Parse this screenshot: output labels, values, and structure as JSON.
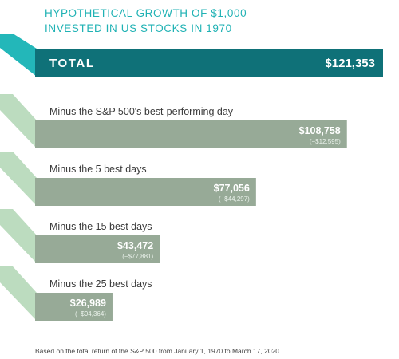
{
  "colors": {
    "headline": "#20b2b4",
    "total_bar": "#0f7178",
    "total_tab": "#23b7b9",
    "row_bar": "#97aa97",
    "row_tab": "#bcdcbf",
    "row_label_text": "#3b3b3b"
  },
  "headline_lines": [
    "HYPOTHETICAL GROWTH OF $1,000",
    "INVESTED IN US STOCKS IN 1970"
  ],
  "footnote": "Based on the total return of the S&P 500 from January 1, 1970 to March 17, 2020.",
  "chart_data": {
    "type": "bar",
    "orientation": "horizontal",
    "title": "HYPOTHETICAL GROWTH OF $1,000 INVESTED IN US STOCKS IN 1970",
    "total": {
      "label": "TOTAL",
      "value": 121353,
      "value_label": "$121,353"
    },
    "categories": [
      "Minus the S&P 500's best-performing day",
      "Minus the 5 best days",
      "Minus the 15 best days",
      "Minus the 25 best days"
    ],
    "values": [
      108758,
      77056,
      43472,
      26989
    ],
    "value_labels": [
      "$108,758",
      "$77,056",
      "$43,472",
      "$26,989"
    ],
    "difference_labels": [
      "(−$12,595)",
      "(−$44,297)",
      "(−$77,881)",
      "(−$94,364)"
    ],
    "grid": false,
    "legend": "none"
  }
}
